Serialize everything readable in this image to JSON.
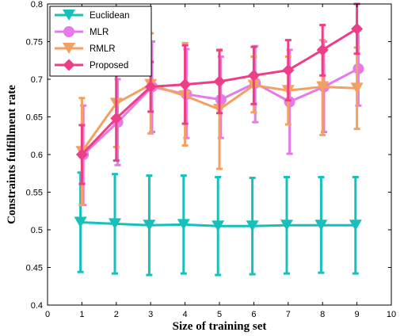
{
  "chart_data": {
    "type": "line",
    "xlabel": "Size of training set",
    "ylabel": "Constraints fulfillment rate",
    "xlim": [
      0,
      10
    ],
    "ylim": [
      0.4,
      0.8
    ],
    "xticks": [
      "0",
      "1",
      "2",
      "3",
      "4",
      "5",
      "6",
      "7",
      "8",
      "9",
      "10"
    ],
    "yticks": [
      "0.4",
      "0.45",
      "0.5",
      "0.55",
      "0.6",
      "0.65",
      "0.7",
      "0.75",
      "0.8"
    ],
    "grid": false,
    "legend_position": "top-left",
    "x": [
      1,
      2,
      3,
      4,
      5,
      6,
      7,
      8,
      9
    ],
    "series": [
      {
        "name": "Euclidean",
        "color": "#18c0bc",
        "marker": "triangle-down",
        "values": [
          0.51,
          0.508,
          0.506,
          0.507,
          0.505,
          0.505,
          0.506,
          0.506,
          0.506
        ],
        "err_low": [
          0.444,
          0.442,
          0.44,
          0.442,
          0.44,
          0.441,
          0.442,
          0.443,
          0.442
        ],
        "err_high": [
          0.576,
          0.574,
          0.572,
          0.572,
          0.57,
          0.569,
          0.57,
          0.57,
          0.57
        ]
      },
      {
        "name": "MLR",
        "color": "#e57ae8",
        "marker": "circle",
        "values": [
          0.6,
          0.643,
          0.69,
          0.68,
          0.673,
          0.695,
          0.67,
          0.69,
          0.714
        ],
        "err_low": [
          0.533,
          0.586,
          0.63,
          0.622,
          0.622,
          0.643,
          0.601,
          0.63,
          0.665
        ],
        "err_high": [
          0.665,
          0.7,
          0.75,
          0.74,
          0.73,
          0.744,
          0.739,
          0.75,
          0.765
        ]
      },
      {
        "name": "RMLR",
        "color": "#f4a062",
        "marker": "triangle-down",
        "values": [
          0.604,
          0.668,
          0.693,
          0.678,
          0.66,
          0.692,
          0.685,
          0.69,
          0.688
        ],
        "err_low": [
          0.533,
          0.61,
          0.628,
          0.612,
          0.581,
          0.656,
          0.64,
          0.626,
          0.634
        ],
        "err_high": [
          0.675,
          0.727,
          0.761,
          0.748,
          0.738,
          0.73,
          0.73,
          0.752,
          0.742
        ]
      },
      {
        "name": "Proposed",
        "color": "#ec3f87",
        "marker": "diamond",
        "values": [
          0.6,
          0.648,
          0.69,
          0.693,
          0.697,
          0.705,
          0.712,
          0.739,
          0.767
        ],
        "err_low": [
          0.561,
          0.592,
          0.657,
          0.641,
          0.655,
          0.667,
          0.672,
          0.705,
          0.734
        ],
        "err_high": [
          0.639,
          0.71,
          0.723,
          0.745,
          0.739,
          0.743,
          0.752,
          0.772,
          0.8
        ]
      }
    ]
  }
}
